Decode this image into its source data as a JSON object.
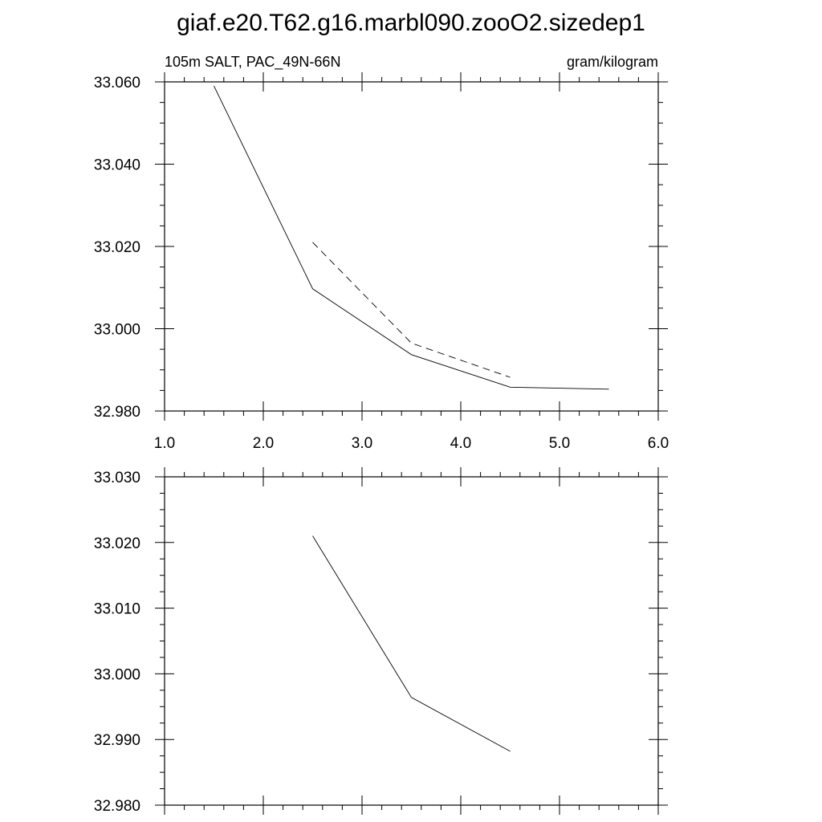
{
  "title": "giaf.e20.T62.g16.marbl090.zooO2.sizedep1",
  "chart_data": [
    {
      "type": "line",
      "left_label": "105m SALT, PAC_49N-66N",
      "right_label": "gram/kilogram",
      "xlim": [
        1.0,
        6.0
      ],
      "ylim": [
        32.98,
        33.06
      ],
      "x_ticks": [
        "1.0",
        "2.0",
        "3.0",
        "4.0",
        "5.0",
        "6.0"
      ],
      "y_ticks": [
        "32.980",
        "33.000",
        "33.020",
        "33.040",
        "33.060"
      ],
      "series": [
        {
          "style": "solid",
          "x": [
            1.5,
            2.5,
            3.5,
            4.5,
            5.5
          ],
          "y": [
            33.059,
            33.0097,
            32.9937,
            32.9858,
            32.9853
          ]
        },
        {
          "style": "dashed",
          "x": [
            2.5,
            3.5,
            4.5
          ],
          "y": [
            33.021,
            32.9965,
            32.9882
          ]
        }
      ]
    },
    {
      "type": "line",
      "xlim": [
        1.0,
        6.0
      ],
      "ylim": [
        32.98,
        33.03
      ],
      "x_ticks": [],
      "y_ticks": [
        "32.980",
        "32.990",
        "33.000",
        "33.010",
        "33.020",
        "33.030"
      ],
      "series": [
        {
          "style": "solid",
          "x": [
            2.5,
            3.5,
            4.5
          ],
          "y": [
            33.021,
            32.9964,
            32.9882
          ]
        }
      ]
    }
  ]
}
